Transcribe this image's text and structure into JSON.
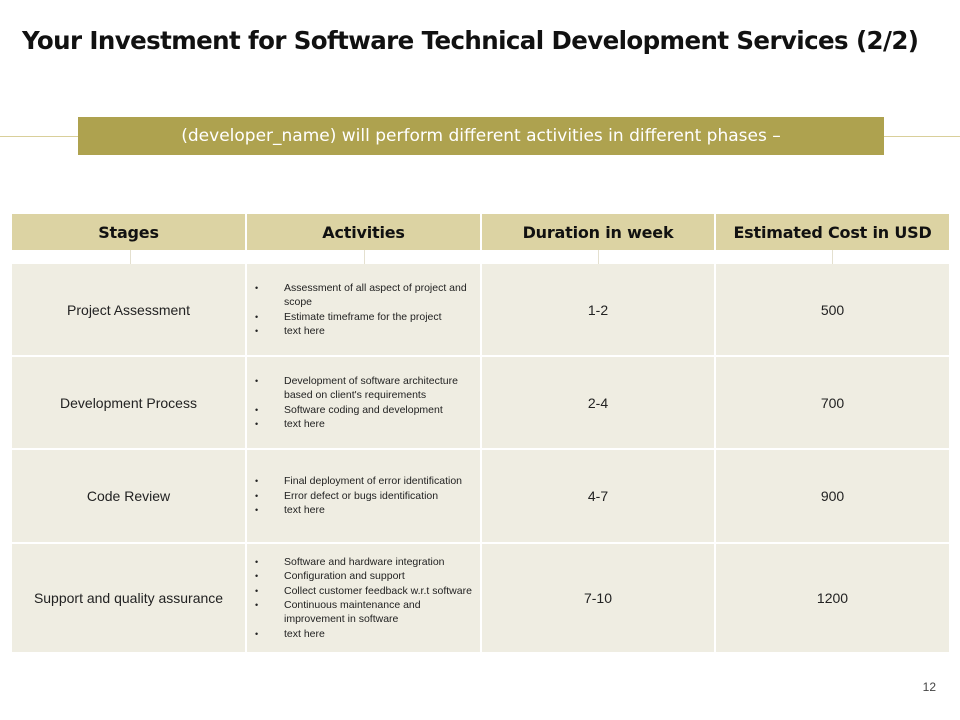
{
  "slide": {
    "title": "Your Investment for Software Technical Development  Services (2/2)",
    "banner": "(developer_name) will perform different activities in different phases –",
    "page_number": "12"
  },
  "table": {
    "headers": [
      "Stages",
      "Activities",
      "Duration in week",
      "Estimated Cost in USD"
    ],
    "rows": [
      {
        "stage": "Project Assessment",
        "activities": [
          "Assessment of  all aspect of project and  scope",
          "Estimate timeframe for the project",
          "text here"
        ],
        "duration": "1-2",
        "cost": "500"
      },
      {
        "stage": "Development Process",
        "activities": [
          "Development of software architecture based on client's requirements",
          "Software coding and development",
          "text here"
        ],
        "duration": "2-4",
        "cost": "700"
      },
      {
        "stage": "Code Review",
        "activities": [
          "Final deployment of error identification",
          "Error defect or bugs identification",
          "text here"
        ],
        "duration": "4-7",
        "cost": "900"
      },
      {
        "stage": "Support and quality assurance",
        "activities": [
          "Software and hardware integration",
          "Configuration and support",
          "Collect customer feedback w.r.t software",
          "Continuous maintenance and improvement in software",
          "text here"
        ],
        "duration": "7-10",
        "cost": "1200"
      }
    ]
  }
}
